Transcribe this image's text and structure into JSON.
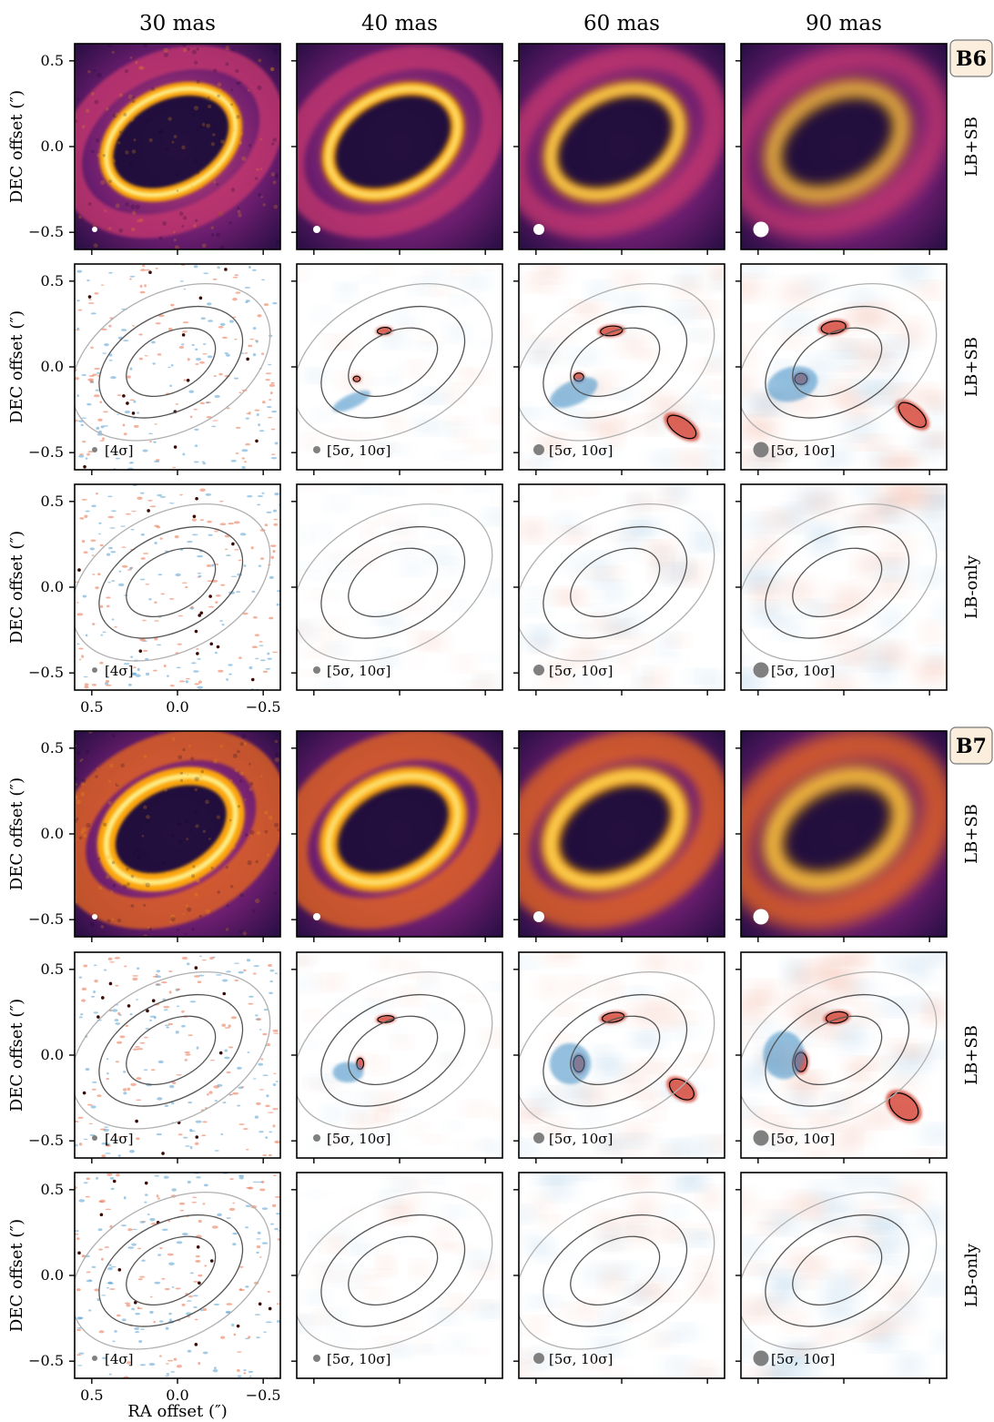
{
  "column_titles": [
    "30 mas",
    "40 mas",
    "60 mas",
    "90 mas"
  ],
  "band_labels": [
    "B6",
    "B7"
  ],
  "row_labels": [
    "LB+SB",
    "LB+SB",
    "LB-only",
    "LB+SB",
    "LB+SB",
    "LB-only"
  ],
  "y_axis_label": "DEC offset  (″)",
  "x_axis_label": "RA offset  (″)",
  "y_ticks": [
    "0.5",
    "0.0",
    "−0.5"
  ],
  "x_ticks": [
    "0.5",
    "0.0",
    "−0.5"
  ],
  "sigma_labels": [
    "[4σ]",
    "[5σ, 10σ]",
    "[5σ, 10σ]",
    "[5σ, 10σ]"
  ],
  "colors": {
    "intensity_dark": "#0d0523",
    "intensity_mid": "#b8377a",
    "intensity_bright": "#fca50a",
    "intensity_peak": "#fcffa4",
    "positive_residual": "#c0392b",
    "negative_residual": "#2c7bb6",
    "ellipse_outer": "#b0b0b0",
    "ellipse_inner": "#555555",
    "badge_fill": "#fbeedd",
    "beam_residual": "#808080"
  },
  "chart_data": {
    "type": "image-grid",
    "columns": [
      "30 mas",
      "40 mas",
      "60 mas",
      "90 mas"
    ],
    "bands": [
      {
        "band": "B6",
        "rows": [
          "LB+SB intensity",
          "LB+SB residual",
          "LB-only residual"
        ]
      },
      {
        "band": "B7",
        "rows": [
          "LB+SB intensity",
          "LB+SB residual",
          "LB-only residual"
        ]
      }
    ],
    "xlabel": "RA offset  (″)",
    "ylabel": "DEC offset  (″)",
    "xlim": [
      0.6,
      -0.6
    ],
    "ylim": [
      -0.6,
      0.6
    ],
    "xticks": [
      0.5,
      0.0,
      -0.5
    ],
    "yticks": [
      0.5,
      0.0,
      -0.5
    ],
    "contour_levels": [
      "[4σ]",
      "[5σ, 10σ]",
      "[5σ, 10σ]",
      "[5σ, 10σ]"
    ]
  }
}
